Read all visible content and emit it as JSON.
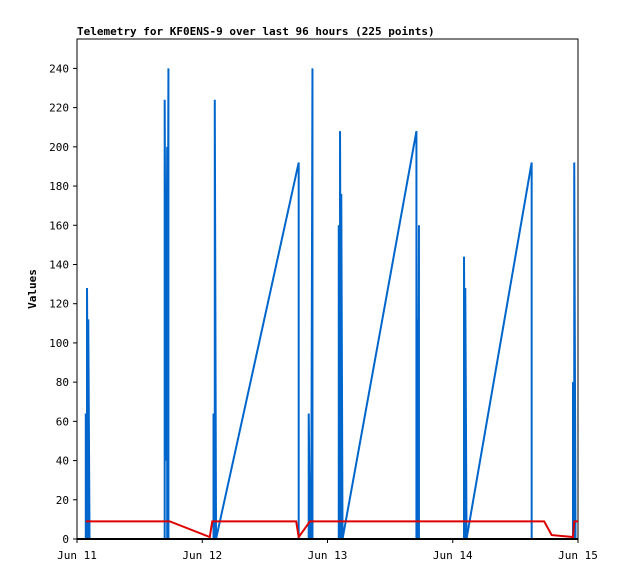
{
  "chart_data": {
    "type": "line",
    "title": "Telemetry for KF0ENS-9 over last 96 hours (225 points)",
    "ylabel": "Values",
    "xlabel": "",
    "ylim": [
      0,
      255
    ],
    "xlim": [
      0,
      4
    ],
    "y_ticks": [
      0,
      20,
      40,
      60,
      80,
      100,
      120,
      140,
      160,
      180,
      200,
      220,
      240
    ],
    "x_ticks": [
      {
        "x": 0,
        "label": "Jun 11"
      },
      {
        "x": 1,
        "label": "Jun 12"
      },
      {
        "x": 2,
        "label": "Jun 13"
      },
      {
        "x": 3,
        "label": "Jun 14"
      },
      {
        "x": 4,
        "label": "Jun 15"
      }
    ],
    "grid": false,
    "series": [
      {
        "color": "#0066cc",
        "points": [
          [
            0.07,
            0
          ],
          [
            0.07,
            64
          ],
          [
            0.08,
            0
          ],
          [
            0.08,
            128
          ],
          [
            0.09,
            0
          ],
          [
            0.09,
            112
          ],
          [
            0.1,
            0
          ],
          [
            0.7,
            0
          ],
          [
            0.7,
            224
          ],
          [
            0.71,
            40
          ],
          [
            0.72,
            200
          ],
          [
            0.72,
            0
          ],
          [
            0.73,
            240
          ],
          [
            0.73,
            0
          ],
          [
            1.09,
            0
          ],
          [
            1.09,
            64
          ],
          [
            1.1,
            0
          ],
          [
            1.1,
            224
          ],
          [
            1.11,
            0
          ],
          [
            1.77,
            192
          ],
          [
            1.77,
            0
          ],
          [
            1.85,
            0
          ],
          [
            1.85,
            64
          ],
          [
            1.86,
            0
          ],
          [
            1.86,
            32
          ],
          [
            1.87,
            0
          ],
          [
            1.88,
            240
          ],
          [
            1.88,
            0
          ],
          [
            2.09,
            0
          ],
          [
            2.09,
            160
          ],
          [
            2.1,
            0
          ],
          [
            2.1,
            208
          ],
          [
            2.11,
            0
          ],
          [
            2.11,
            176
          ],
          [
            2.12,
            0
          ],
          [
            2.71,
            208
          ],
          [
            2.71,
            0
          ],
          [
            2.72,
            112
          ],
          [
            2.72,
            0
          ],
          [
            2.73,
            160
          ],
          [
            2.73,
            0
          ],
          [
            3.09,
            0
          ],
          [
            3.09,
            144
          ],
          [
            3.1,
            0
          ],
          [
            3.1,
            128
          ],
          [
            3.11,
            0
          ],
          [
            3.63,
            192
          ],
          [
            3.63,
            0
          ],
          [
            3.96,
            0
          ],
          [
            3.96,
            80
          ],
          [
            3.97,
            0
          ],
          [
            3.97,
            192
          ],
          [
            3.98,
            0
          ]
        ]
      },
      {
        "color": "#dd0000",
        "points": [
          [
            0.07,
            9
          ],
          [
            0.74,
            9
          ],
          [
            1.06,
            1
          ],
          [
            1.08,
            9
          ],
          [
            1.75,
            9
          ],
          [
            1.77,
            1
          ],
          [
            1.86,
            9
          ],
          [
            3.73,
            9
          ],
          [
            3.79,
            2
          ],
          [
            3.96,
            1
          ],
          [
            3.97,
            9
          ],
          [
            4.0,
            9
          ]
        ]
      },
      {
        "color": "#000000",
        "points": [
          [
            0,
            0
          ],
          [
            4,
            0
          ]
        ]
      }
    ]
  }
}
